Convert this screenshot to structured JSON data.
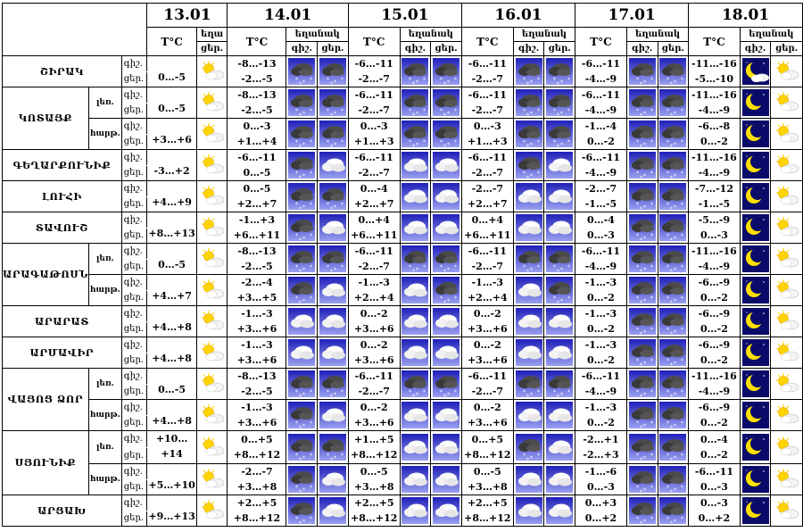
{
  "header": {
    "dates": [
      "13.01",
      "14.01",
      "15.01",
      "16.01",
      "17.01",
      "18.01"
    ],
    "temp_label": "T°C",
    "weather_label_short": "եղա",
    "weather_label": "եղանակ",
    "night": "գիշ.",
    "day": "ցեր."
  },
  "rows": [
    {
      "region": "ՇԻՐԱԿ",
      "sub": "",
      "days": [
        {
          "night": "",
          "day": "0…-5",
          "icons": [
            "sun-cloud"
          ]
        },
        {
          "night": "-8…-13",
          "day": "-2…-5",
          "icons": [
            "snow-dark",
            "snow-dark"
          ]
        },
        {
          "night": "-6…-11",
          "day": "-2…-7",
          "icons": [
            "snow-dark",
            "snow-dark"
          ]
        },
        {
          "night": "-6…-11",
          "day": "-2…-7",
          "icons": [
            "snow-dark",
            "snow-dark"
          ]
        },
        {
          "night": "-6…-11",
          "day": "-4…-9",
          "icons": [
            "snow-dark",
            "snow-dark"
          ]
        },
        {
          "night": "-11…-16",
          "day": "-5…-10",
          "icons": [
            "moon-cloud",
            "sun-cloud"
          ]
        }
      ]
    },
    {
      "region": "ԿՈՏԱՅՔ",
      "sub": "լեռ.",
      "days": [
        {
          "night": "",
          "day": "0…-5",
          "icons": [
            "sun-cloud"
          ]
        },
        {
          "night": "-8…-13",
          "day": "-2…-5",
          "icons": [
            "snow-dark",
            "snow-dark"
          ]
        },
        {
          "night": "-6…-11",
          "day": "-2…-7",
          "icons": [
            "snow-dark",
            "snow-dark"
          ]
        },
        {
          "night": "-6…-11",
          "day": "-2…-7",
          "icons": [
            "snow-dark",
            "snow-dark"
          ]
        },
        {
          "night": "-6…-11",
          "day": "-4…-9",
          "icons": [
            "snow-dark",
            "snow-dark"
          ]
        },
        {
          "night": "-11…-16",
          "day": "-4…-9",
          "icons": [
            "moon",
            "sun-cloud"
          ]
        }
      ]
    },
    {
      "region": "",
      "sub": "հարթ.",
      "days": [
        {
          "night": "",
          "day": "+3…+6",
          "icons": [
            "sun-cloud"
          ]
        },
        {
          "night": "0…-3",
          "day": "+1…+4",
          "icons": [
            "snow-dark",
            "snow-dark"
          ]
        },
        {
          "night": "0…-3",
          "day": "+1…+3",
          "icons": [
            "snow-dark",
            "snow-dark"
          ]
        },
        {
          "night": "0…-3",
          "day": "+1…+3",
          "icons": [
            "snow-dark",
            "snow-dark"
          ]
        },
        {
          "night": "-1…-4",
          "day": "0…-2",
          "icons": [
            "snow-dark",
            "snow-dark"
          ]
        },
        {
          "night": "-6…-8",
          "day": "0…-2",
          "icons": [
            "moon",
            "sun-cloud"
          ]
        }
      ]
    },
    {
      "region": "ԳԵՂԱՐՔՈՒՆԻՔ",
      "sub": "",
      "days": [
        {
          "night": "",
          "day": "-3…+2",
          "icons": [
            "sun-cloud"
          ]
        },
        {
          "night": "-6…-11",
          "day": "0…-5",
          "icons": [
            "snow-dark",
            "cloud"
          ]
        },
        {
          "night": "-6…-11",
          "day": "-2…-7",
          "icons": [
            "cloud",
            "cloud"
          ]
        },
        {
          "night": "-6…-11",
          "day": "-2…-7",
          "icons": [
            "snow-dark",
            "cloud"
          ]
        },
        {
          "night": "-6…-11",
          "day": "-4…-9",
          "icons": [
            "snow-dark",
            "snow-dark"
          ]
        },
        {
          "night": "-11…-16",
          "day": "-4…-9",
          "icons": [
            "moon",
            "sun-cloud"
          ]
        }
      ]
    },
    {
      "region": "ԼՈՒՀԻ",
      "sub": "",
      "days": [
        {
          "night": "",
          "day": "+4…+9",
          "icons": [
            "sun-cloud"
          ]
        },
        {
          "night": "0…-5",
          "day": "+2…+7",
          "icons": [
            "snow-dark",
            "snow-dark"
          ]
        },
        {
          "night": "0…-4",
          "day": "+2…+7",
          "icons": [
            "cloud",
            "cloud"
          ]
        },
        {
          "night": "-2…-7",
          "day": "+2…+7",
          "icons": [
            "cloud",
            "cloud"
          ]
        },
        {
          "night": "-2…-7",
          "day": "-1…-5",
          "icons": [
            "snow-dark",
            "snow-dark"
          ]
        },
        {
          "night": "-7…-12",
          "day": "-1…-5",
          "icons": [
            "moon",
            "sun-cloud"
          ]
        }
      ]
    },
    {
      "region": "ՏԱՎՈՒՇ",
      "sub": "",
      "days": [
        {
          "night": "",
          "day": "+8…+13",
          "icons": [
            "sun-cloud"
          ]
        },
        {
          "night": "-1…+3",
          "day": "+6…+11",
          "icons": [
            "snow-dark",
            "cloud"
          ]
        },
        {
          "night": "0…+4",
          "day": "+6…+11",
          "icons": [
            "cloud",
            "cloud"
          ]
        },
        {
          "night": "0…+4",
          "day": "+6…+11",
          "icons": [
            "cloud",
            "cloud"
          ]
        },
        {
          "night": "0…-4",
          "day": "0…-3",
          "icons": [
            "snow-dark",
            "snow-dark"
          ]
        },
        {
          "night": "-5…-9",
          "day": "0…-3",
          "icons": [
            "moon",
            "sun-cloud"
          ]
        }
      ]
    },
    {
      "region": "ԱՐԱԳԱԹՈՍՆ",
      "sub": "լեռ.",
      "days": [
        {
          "night": "",
          "day": "0…-5",
          "icons": [
            "sun-cloud"
          ]
        },
        {
          "night": "-8…-13",
          "day": "-2…-5",
          "icons": [
            "snow-dark",
            "snow-dark"
          ]
        },
        {
          "night": "-6…-11",
          "day": "-2…-7",
          "icons": [
            "snow-dark",
            "snow-dark"
          ]
        },
        {
          "night": "-6…-11",
          "day": "-2…-7",
          "icons": [
            "snow-dark",
            "snow-dark"
          ]
        },
        {
          "night": "-6…-11",
          "day": "-4…-9",
          "icons": [
            "snow-dark",
            "snow-dark"
          ]
        },
        {
          "night": "-11…-16",
          "day": "-4…-9",
          "icons": [
            "moon",
            "sun-cloud"
          ]
        }
      ]
    },
    {
      "region": "",
      "sub": "հարթ.",
      "days": [
        {
          "night": "",
          "day": "+4…+7",
          "icons": [
            "sun-cloud"
          ]
        },
        {
          "night": "-2…-4",
          "day": "+3…+5",
          "icons": [
            "snow-dark",
            "cloud"
          ]
        },
        {
          "night": "-1…-3",
          "day": "+2…+4",
          "icons": [
            "cloud",
            "snow-dark"
          ]
        },
        {
          "night": "-1…-3",
          "day": "+2…+4",
          "icons": [
            "cloud",
            "snow-dark"
          ]
        },
        {
          "night": "-1…-3",
          "day": "0…-2",
          "icons": [
            "snow-dark",
            "snow-dark"
          ]
        },
        {
          "night": "-6…-9",
          "day": "0…-2",
          "icons": [
            "moon",
            "sun-cloud"
          ]
        }
      ]
    },
    {
      "region": "ԱՐԱՐԱՏ",
      "sub": "",
      "days": [
        {
          "night": "",
          "day": "+4…+8",
          "icons": [
            "sun-cloud"
          ]
        },
        {
          "night": "-1…-3",
          "day": "+3…+6",
          "icons": [
            "cloud",
            "cloud"
          ]
        },
        {
          "night": "0…-2",
          "day": "+3…+6",
          "icons": [
            "cloud",
            "cloud"
          ]
        },
        {
          "night": "0…-2",
          "day": "+3…+6",
          "icons": [
            "cloud",
            "cloud"
          ]
        },
        {
          "night": "-1…-3",
          "day": "0…-2",
          "icons": [
            "snow-dark",
            "snow-dark"
          ]
        },
        {
          "night": "-6…-9",
          "day": "0…-2",
          "icons": [
            "moon",
            "sun-cloud"
          ]
        }
      ]
    },
    {
      "region": "ԱՐՄԱՎԻՐ",
      "sub": "",
      "days": [
        {
          "night": "",
          "day": "+4…+8",
          "icons": [
            "sun-cloud"
          ]
        },
        {
          "night": "-1…-3",
          "day": "+3…+6",
          "icons": [
            "cloud",
            "cloud"
          ]
        },
        {
          "night": "0…-2",
          "day": "+3…+6",
          "icons": [
            "cloud",
            "cloud"
          ]
        },
        {
          "night": "0…-2",
          "day": "+3…+6",
          "icons": [
            "cloud",
            "cloud"
          ]
        },
        {
          "night": "-1…-3",
          "day": "0…-2",
          "icons": [
            "snow-dark",
            "snow-dark"
          ]
        },
        {
          "night": "-6…-9",
          "day": "0…-2",
          "icons": [
            "moon",
            "sun-cloud"
          ]
        }
      ]
    },
    {
      "region": "ՎԱՅՈՑ ՁՈՐ",
      "sub": "լեռ.",
      "days": [
        {
          "night": "",
          "day": "0…-5",
          "icons": [
            "sun-cloud"
          ]
        },
        {
          "night": "-8…-13",
          "day": "-2…-5",
          "icons": [
            "snow-dark",
            "snow-dark"
          ]
        },
        {
          "night": "-6…-11",
          "day": "-2…-7",
          "icons": [
            "snow-dark",
            "snow-dark"
          ]
        },
        {
          "night": "-6…-11",
          "day": "-2…-7",
          "icons": [
            "snow-dark",
            "snow-dark"
          ]
        },
        {
          "night": "-6…-11",
          "day": "-4…-9",
          "icons": [
            "snow-dark",
            "snow-dark"
          ]
        },
        {
          "night": "-11…-16",
          "day": "-4…-9",
          "icons": [
            "moon",
            "sun-cloud"
          ]
        }
      ]
    },
    {
      "region": "",
      "sub": "հարթ.",
      "days": [
        {
          "night": "",
          "day": "+4…+8",
          "icons": [
            "sun-cloud"
          ]
        },
        {
          "night": "-1…-3",
          "day": "+3…+6",
          "icons": [
            "snow-dark",
            "cloud"
          ]
        },
        {
          "night": "0…-2",
          "day": "+3…+6",
          "icons": [
            "cloud",
            "cloud"
          ]
        },
        {
          "night": "0…-2",
          "day": "+3…+6",
          "icons": [
            "cloud",
            "cloud"
          ]
        },
        {
          "night": "-1…-3",
          "day": "0…-2",
          "icons": [
            "snow-dark",
            "snow-dark"
          ]
        },
        {
          "night": "-6…-9",
          "day": "0…-2",
          "icons": [
            "moon",
            "sun-cloud"
          ]
        }
      ]
    },
    {
      "region": "ՍՅՈՒՆԻՔ",
      "sub": "լեռ.",
      "days": [
        {
          "night": "",
          "day": "+10…+14",
          "icons": [
            "sun-cloud"
          ]
        },
        {
          "night": "0…+5",
          "day": "+8…+12",
          "icons": [
            "snow-dark",
            "snow-dark"
          ]
        },
        {
          "night": "+1…+5",
          "day": "+8…+12",
          "icons": [
            "cloud",
            "cloud"
          ]
        },
        {
          "night": "0…+5",
          "day": "+8…+12",
          "icons": [
            "snow-dark",
            "cloud"
          ]
        },
        {
          "night": "-2…+1",
          "day": "-2…+3",
          "icons": [
            "snow-dark",
            "snow-dark"
          ]
        },
        {
          "night": "0…-4",
          "day": "0…-2",
          "icons": [
            "moon",
            "sun-cloud"
          ]
        }
      ]
    },
    {
      "region": "",
      "sub": "հարթ.",
      "days": [
        {
          "night": "",
          "day": "+5…+10",
          "icons": [
            "sun-cloud"
          ]
        },
        {
          "night": "-2…-7",
          "day": "+3…+8",
          "icons": [
            "snow-dark",
            "cloud"
          ]
        },
        {
          "night": "0…-5",
          "day": "+3…+8",
          "icons": [
            "cloud",
            "cloud"
          ]
        },
        {
          "night": "0…-5",
          "day": "+3…+8",
          "icons": [
            "cloud",
            "cloud"
          ]
        },
        {
          "night": "-1…-6",
          "day": "0…-3",
          "icons": [
            "snow-dark",
            "snow-dark"
          ]
        },
        {
          "night": "-6…-11",
          "day": "0…-3",
          "icons": [
            "moon",
            "sun-cloud"
          ]
        }
      ]
    },
    {
      "region": "ԱՐՑԱԽ",
      "sub": "",
      "days": [
        {
          "night": "",
          "day": "+9…+13",
          "icons": [
            "sun-cloud"
          ]
        },
        {
          "night": "+2…+5",
          "day": "+8…+12",
          "icons": [
            "snow-dark",
            "cloud"
          ]
        },
        {
          "night": "+2…+5",
          "day": "+8…+12",
          "icons": [
            "cloud",
            "cloud"
          ]
        },
        {
          "night": "+2…+5",
          "day": "+8…+12",
          "icons": [
            "cloud",
            "cloud"
          ]
        },
        {
          "night": "0…+3",
          "day": "0…+2",
          "icons": [
            "snow-dark",
            "snow-dark"
          ]
        },
        {
          "night": "0…-3",
          "day": "0…+2",
          "icons": [
            "moon",
            "sun-cloud"
          ]
        }
      ]
    }
  ],
  "colors": {
    "sky_top": "#1f1fb8",
    "sky_bottom": "#9aa0f0",
    "night_sky": "#0b0b6a",
    "moon": "#ffe000",
    "sun": "#ffd400",
    "cloud_dark": "#4a4a4a",
    "cloud_light": "#ffffff"
  }
}
